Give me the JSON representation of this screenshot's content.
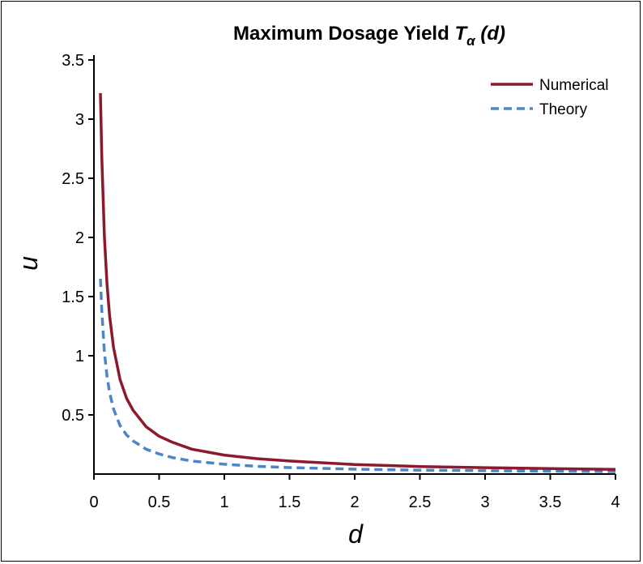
{
  "chart_data": {
    "type": "line",
    "title_main": "Maximum Dosage Yield",
    "title_symbol": "T",
    "title_subscript": "α",
    "title_arg": "(d)",
    "xlabel": "d",
    "ylabel": "u",
    "xlim": [
      0,
      4
    ],
    "ylim": [
      0,
      3.5
    ],
    "xticks": [
      "0",
      "0.5",
      "1",
      "1.5",
      "2",
      "2.5",
      "3",
      "3.5",
      "4"
    ],
    "yticks": [
      "0.5",
      "1",
      "1.5",
      "2",
      "2.5",
      "3",
      "3.5"
    ],
    "grid": false,
    "legend_position": "top-right",
    "series": [
      {
        "name": "Numerical",
        "style": "solid",
        "color": "#8b1a2e",
        "x": [
          0.05,
          0.06,
          0.08,
          0.1,
          0.12,
          0.15,
          0.2,
          0.25,
          0.3,
          0.4,
          0.5,
          0.6,
          0.75,
          1.0,
          1.25,
          1.5,
          2.0,
          2.5,
          3.0,
          3.5,
          4.0
        ],
        "y": [
          3.22,
          2.68,
          2.01,
          1.61,
          1.34,
          1.07,
          0.8,
          0.64,
          0.54,
          0.4,
          0.32,
          0.27,
          0.21,
          0.16,
          0.13,
          0.11,
          0.08,
          0.064,
          0.054,
          0.046,
          0.04
        ]
      },
      {
        "name": "Theory",
        "style": "dashed",
        "color": "#4a86c8",
        "x": [
          0.05,
          0.06,
          0.08,
          0.1,
          0.12,
          0.15,
          0.2,
          0.25,
          0.3,
          0.4,
          0.5,
          0.6,
          0.75,
          1.0,
          1.25,
          1.5,
          2.0,
          2.5,
          3.0,
          3.5,
          4.0
        ],
        "y": [
          1.65,
          1.38,
          1.03,
          0.83,
          0.69,
          0.55,
          0.41,
          0.33,
          0.28,
          0.21,
          0.17,
          0.14,
          0.11,
          0.083,
          0.066,
          0.055,
          0.041,
          0.033,
          0.028,
          0.024,
          0.021
        ]
      }
    ]
  }
}
